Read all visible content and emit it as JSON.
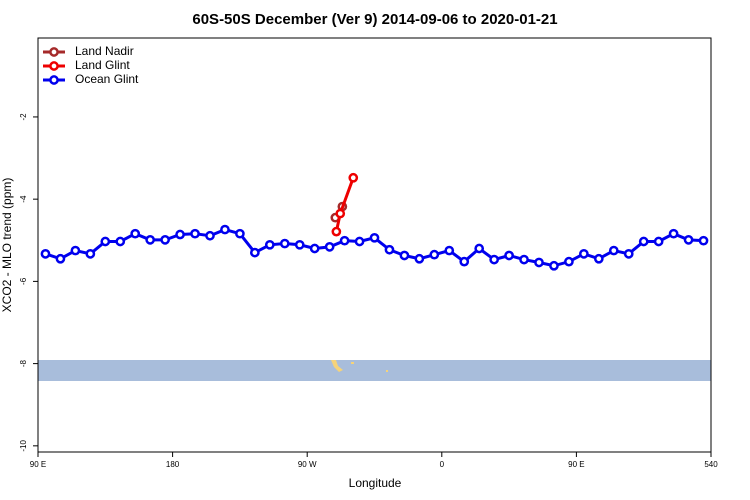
{
  "chart_data": {
    "type": "line",
    "title": "60S-50S December (Ver 9)   2014-09-06 to 2020-01-21",
    "xlabel": "Longitude",
    "ylabel": "XCO2 - MLO trend (ppm)",
    "xlim": [
      90,
      540
    ],
    "ylim": [
      -10.15,
      -0.08
    ],
    "xticks": [
      {
        "value": 90,
        "label": "90 E"
      },
      180,
      {
        "value": 270,
        "label": "90 W"
      },
      {
        "value": 360,
        "label": "0"
      },
      {
        "value": 450,
        "label": "90 E"
      },
      540
    ],
    "yticks": [
      -10,
      -8,
      -6,
      -4,
      -2
    ],
    "legend": "top-left",
    "series": [
      {
        "name": "Land Nadir",
        "color": "#a52a2a",
        "x": [
          288.8,
          293.5
        ],
        "values": [
          -4.45,
          -4.18
        ]
      },
      {
        "name": "Land Glint",
        "color": "#ee0000",
        "x": [
          289.5,
          292.1,
          300.8
        ],
        "values": [
          -4.79,
          -4.35,
          -3.48
        ]
      },
      {
        "name": "Ocean Glint",
        "color": "#0000ee",
        "x": [
          95,
          105,
          115,
          125,
          135,
          145,
          155,
          165,
          175,
          185,
          195,
          205,
          215,
          225,
          235,
          245,
          255,
          265,
          275,
          285,
          295,
          305,
          315,
          325,
          335,
          345,
          355,
          365,
          375,
          385,
          395,
          405,
          415,
          425,
          435,
          445,
          455,
          465,
          475,
          485,
          495,
          505,
          515,
          525,
          535
        ],
        "values": [
          -5.33,
          -5.45,
          -5.25,
          -5.33,
          -5.03,
          -5.03,
          -4.84,
          -4.99,
          -4.99,
          -4.86,
          -4.84,
          -4.89,
          -4.74,
          -4.84,
          -5.3,
          -5.11,
          -5.08,
          -5.11,
          -5.2,
          -5.16,
          -5.01,
          -5.03,
          -4.94,
          -5.23,
          -5.37,
          -5.45,
          -5.35,
          -5.25,
          -5.52,
          -5.2,
          -5.47,
          -5.37,
          -5.47,
          -5.54,
          -5.62,
          -5.52,
          -5.33,
          -5.45,
          -5.25,
          -5.33,
          -5.03,
          -5.03,
          -4.84,
          -4.99,
          -5.01
        ]
      }
    ]
  }
}
